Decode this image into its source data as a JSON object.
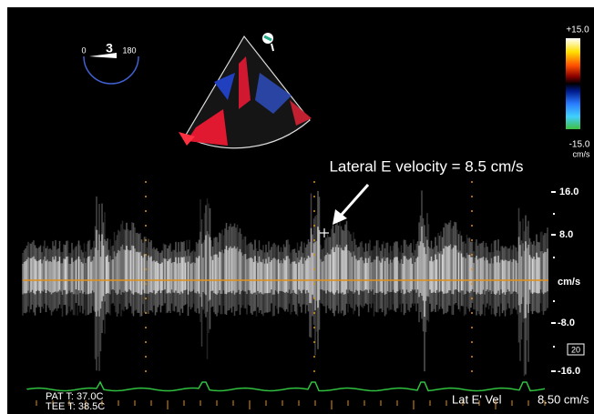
{
  "header": {
    "angle_min": "0",
    "angle_value": "3",
    "angle_max": "180"
  },
  "color_scale": {
    "top": "+15.0",
    "bottom": "-15.0",
    "unit": "cm/s"
  },
  "annotation": "Lateral E velocity = 8.5 cm/s",
  "velocity_scale": {
    "labels": [
      "16.0",
      "8.0",
      "cm/s",
      "-8.0",
      "-16.0"
    ],
    "sweep": "20"
  },
  "footer": {
    "pat_temp": "PAT T: 37.0C",
    "tee_temp": "TEE T: 38.5C",
    "measure_name": "Lat E' Vel",
    "measure_value": "8.50 cm/s"
  }
}
